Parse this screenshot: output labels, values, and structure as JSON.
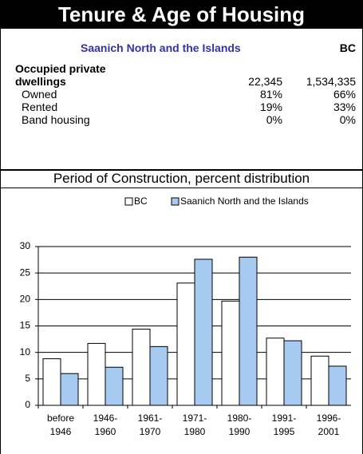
{
  "header": {
    "title": "Tenure & Age of Housing"
  },
  "table": {
    "columns": [
      "Saanich North and the Islands",
      "BC"
    ],
    "rows": [
      [
        "Occupied private dwellings",
        "22,345",
        "1,534,335"
      ],
      [
        "Owned",
        "81%",
        "66%"
      ],
      [
        "Rented",
        "19%",
        "33%"
      ],
      [
        "Band housing",
        "0%",
        "0%"
      ]
    ]
  },
  "chart_data": {
    "type": "bar",
    "title": "Period of Construction, percent distribution",
    "categories": [
      "before 1946",
      "1946-1960",
      "1961-1970",
      "1971-1980",
      "1980-1990",
      "1991-1995",
      "1996-2001"
    ],
    "series": [
      {
        "name": "BC",
        "color": "#ffffff",
        "values": [
          8.8,
          11.7,
          14.4,
          23.1,
          19.7,
          12.7,
          9.3
        ]
      },
      {
        "name": "Saanich North and the Islands",
        "color": "#a6caf0",
        "values": [
          6.0,
          7.2,
          11.1,
          27.6,
          28.0,
          12.2,
          7.4
        ]
      }
    ],
    "ylim": [
      0,
      30
    ],
    "yticks": [
      0,
      5,
      10,
      15,
      20,
      25,
      30
    ],
    "grid": true,
    "legend": "top"
  }
}
